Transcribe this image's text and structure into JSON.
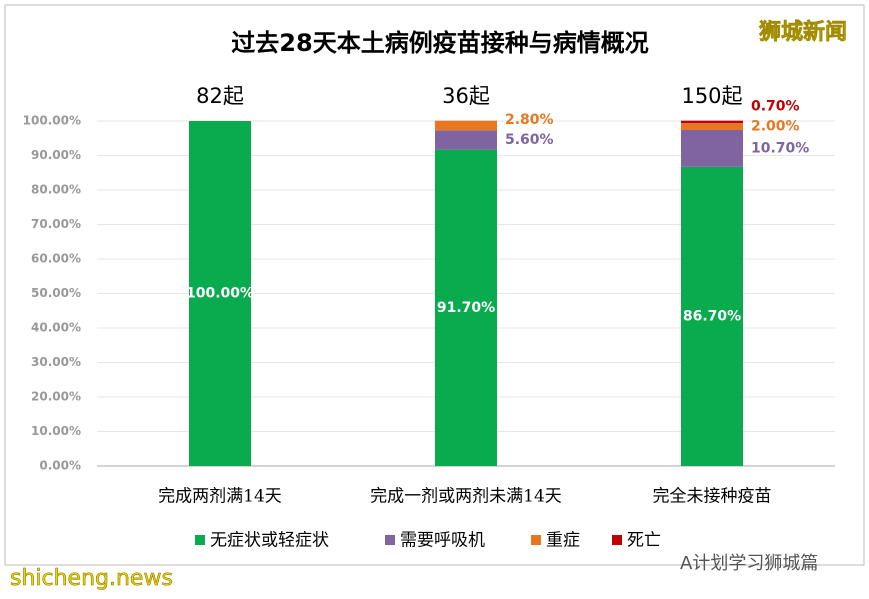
{
  "chart_data": {
    "type": "stacked-bar",
    "title": "过去28天本土病例疫苗接种与病情概况",
    "categories": [
      "完成两剂满14天",
      "完成一剂或两剂未满14天",
      "完全未接种疫苗"
    ],
    "totals": [
      "82起",
      "36起",
      "150起"
    ],
    "series": [
      {
        "name": "无症状或轻症状",
        "color": "#0aab4e",
        "values": [
          100,
          91.7,
          86.7
        ],
        "value_labels": [
          "100.00%",
          "91.70%",
          "86.70%"
        ]
      },
      {
        "name": "需要呼吸机",
        "color": "#8064a2",
        "values": [
          0,
          5.6,
          10.7
        ],
        "value_labels": [
          null,
          "5.60%",
          "10.70%"
        ]
      },
      {
        "name": "重症",
        "color": "#e87722",
        "values": [
          0,
          2.8,
          2.0
        ],
        "value_labels": [
          null,
          "2.80%",
          "2.00%"
        ]
      },
      {
        "name": "死亡",
        "color": "#c00000",
        "values": [
          0,
          0,
          0.7
        ],
        "value_labels": [
          null,
          null,
          "0.70%"
        ]
      }
    ],
    "ylim": [
      0,
      100
    ],
    "yticks": [
      {
        "value": 0,
        "label": "0.00%"
      },
      {
        "value": 10,
        "label": "10.00%"
      },
      {
        "value": 20,
        "label": "20.00%"
      },
      {
        "value": 30,
        "label": "30.00%"
      },
      {
        "value": 40,
        "label": "40.00%"
      },
      {
        "value": 50,
        "label": "50.00%"
      },
      {
        "value": 60,
        "label": "60.00%"
      },
      {
        "value": 70,
        "label": "70.00%"
      },
      {
        "value": 80,
        "label": "80.00%"
      },
      {
        "value": 90,
        "label": "90.00%"
      },
      {
        "value": 100,
        "label": "100.00%"
      }
    ],
    "grid": true
  },
  "watermarks": [
    "狮城新闻",
    "shicheng.news",
    "A计划学习狮城篇"
  ]
}
